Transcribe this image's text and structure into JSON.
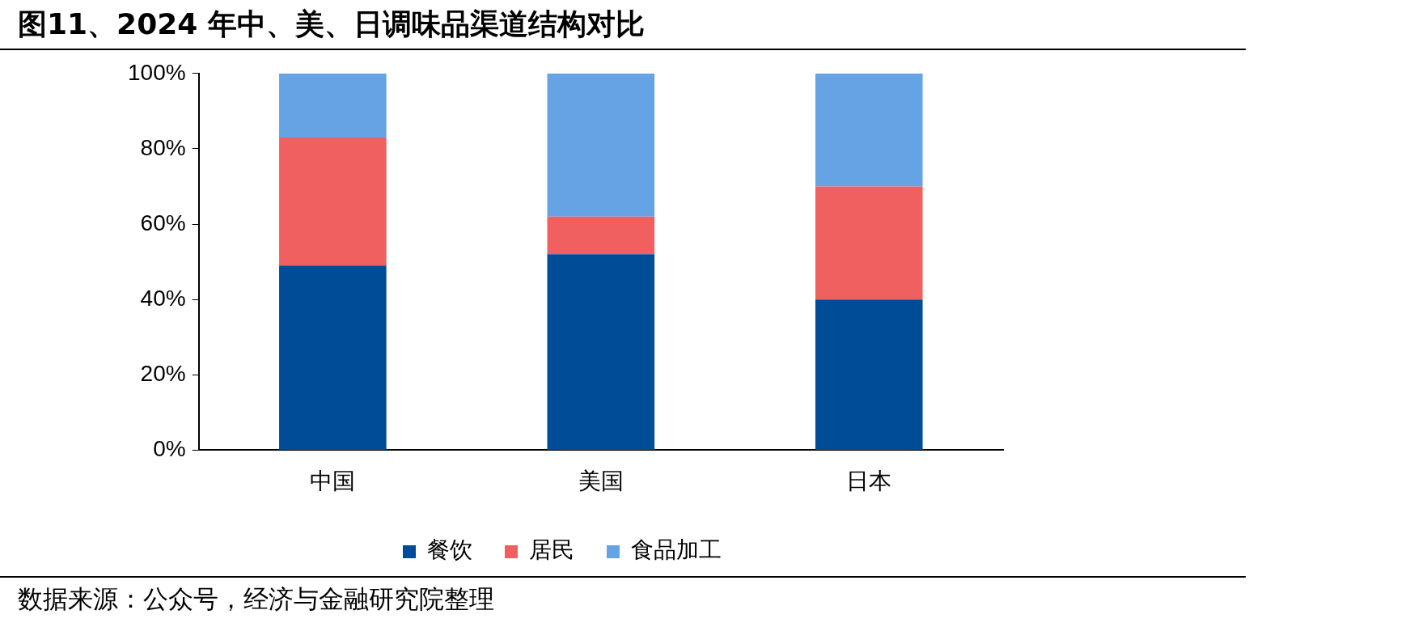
{
  "chart_data": {
    "type": "bar",
    "title": "图11、2024 年中、美、日调味品渠道结构对比",
    "categories": [
      "中国",
      "美国",
      "日本"
    ],
    "stacked": true,
    "series": [
      {
        "name": "餐饮",
        "color": "#004c97",
        "values": [
          49,
          52,
          40
        ]
      },
      {
        "name": "居民",
        "color": "#f06060",
        "values": [
          34,
          10,
          30
        ]
      },
      {
        "name": "食品加工",
        "color": "#66a3e5",
        "values": [
          17,
          38,
          30
        ]
      }
    ],
    "ylim": [
      0,
      100
    ],
    "yticks": [
      {
        "value": 0,
        "label": "0%"
      },
      {
        "value": 20,
        "label": "20%"
      },
      {
        "value": 40,
        "label": "40%"
      },
      {
        "value": 60,
        "label": "60%"
      },
      {
        "value": 80,
        "label": "80%"
      },
      {
        "value": 100,
        "label": "100%"
      }
    ],
    "grid": false,
    "legend": "bottom",
    "annotations": [
      "数据来源：公众号，经济与金融研究院整理"
    ]
  }
}
